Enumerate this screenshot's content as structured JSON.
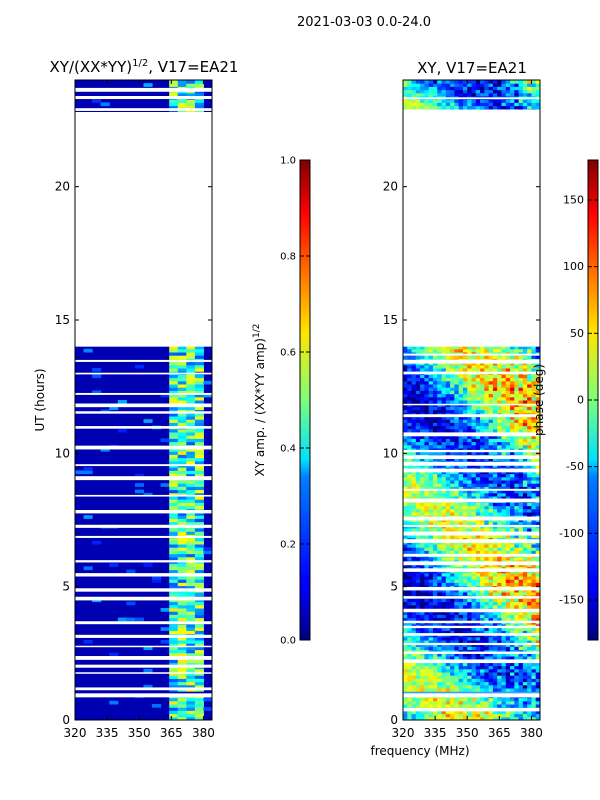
{
  "suptitle": "2021-03-03 0.0-24.0",
  "chart_data": [
    {
      "type": "heatmap",
      "title_main": "XY/(XX*YY)",
      "title_exp": "1/2",
      "title_suffix": ", V17=EA21",
      "xlabel": "",
      "ylabel": "UT (hours)",
      "xlim": [
        320,
        384
      ],
      "ylim": [
        0,
        24
      ],
      "xticks": [
        320,
        335,
        350,
        365,
        380
      ],
      "yticks": [
        0,
        5,
        10,
        15,
        20
      ],
      "colorbar": {
        "label_main": "XY amp. / (XX*YY amp)",
        "label_exp": "1/2",
        "range": [
          0,
          1
        ],
        "ticks": [
          "0.0",
          "0.2",
          "0.4",
          "0.6",
          "0.8",
          "1.0"
        ],
        "colormap": "jet"
      },
      "blank_hours": [
        [
          0.85,
          1.0
        ],
        [
          14.0,
          22.8
        ]
      ],
      "active_channel_range": [
        363,
        381
      ],
      "baseline_value": 0.05
    },
    {
      "type": "heatmap",
      "title": "XY, V17=EA21",
      "xlabel": "frequency (MHz)",
      "ylabel": "",
      "xlim": [
        320,
        384
      ],
      "ylim": [
        0,
        24
      ],
      "xticks": [
        320,
        335,
        350,
        365,
        380
      ],
      "yticks": [
        0,
        5,
        10,
        15,
        20
      ],
      "colorbar": {
        "label": "phase (deg)",
        "range": [
          -180,
          180
        ],
        "ticks": [
          -150,
          -100,
          -50,
          0,
          50,
          100,
          150
        ],
        "colormap": "jet"
      },
      "blank_hours": [
        [
          0.85,
          1.0
        ],
        [
          14.0,
          22.8
        ]
      ]
    }
  ]
}
